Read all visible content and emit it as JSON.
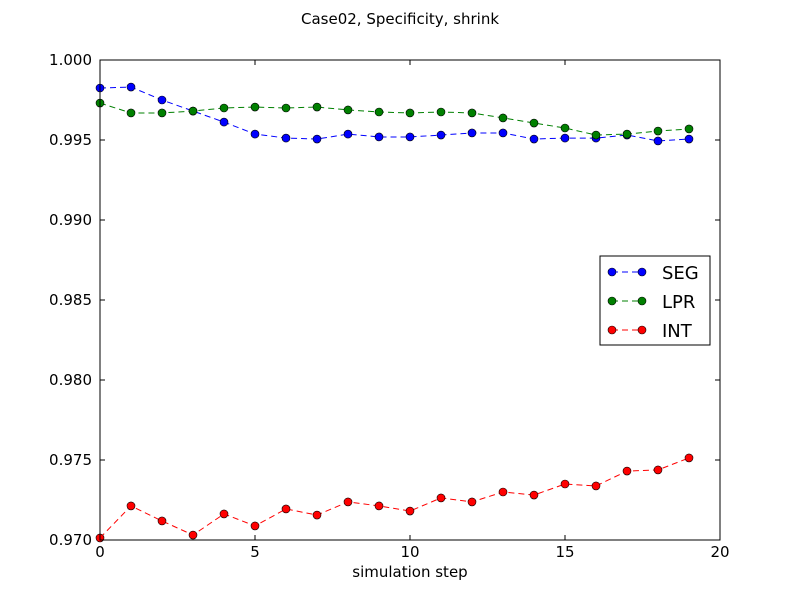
{
  "chart_data": {
    "type": "line",
    "title": "Case02, Specificity, shrink",
    "xlabel": "simulation step",
    "ylabel": "",
    "xlim": [
      0,
      20
    ],
    "ylim": [
      0.97,
      1.0
    ],
    "xticks": [
      0,
      5,
      10,
      15,
      20
    ],
    "xtick_labels": [
      "0",
      "5",
      "10",
      "15",
      "20"
    ],
    "yticks": [
      0.97,
      0.975,
      0.98,
      0.985,
      0.99,
      0.995,
      1.0
    ],
    "ytick_labels": [
      "0.970",
      "0.975",
      "0.980",
      "0.985",
      "0.990",
      "0.995",
      "1.000"
    ],
    "grid": false,
    "legend_position": "center-right",
    "x": [
      0,
      1,
      2,
      3,
      4,
      5,
      6,
      7,
      8,
      9,
      10,
      11,
      12,
      13,
      14,
      15,
      16,
      17,
      18,
      19
    ],
    "series": [
      {
        "name": "SEG",
        "color": "#0000ff",
        "values": [
          0.99825,
          0.99831,
          0.9975,
          0.99681,
          0.99612,
          0.99537,
          0.99512,
          0.99506,
          0.99537,
          0.99519,
          0.99519,
          0.99531,
          0.99544,
          0.99544,
          0.99506,
          0.99512,
          0.99512,
          0.99531,
          0.99494,
          0.99506
        ]
      },
      {
        "name": "LPR",
        "color": "#008000",
        "values": [
          0.99731,
          0.99669,
          0.99669,
          0.99681,
          0.997,
          0.99706,
          0.997,
          0.99706,
          0.99688,
          0.99675,
          0.99669,
          0.99675,
          0.99669,
          0.99638,
          0.99606,
          0.99575,
          0.99531,
          0.99537,
          0.99556,
          0.99569
        ]
      },
      {
        "name": "INT",
        "color": "#ff0000",
        "values": [
          0.97013,
          0.97213,
          0.97119,
          0.97031,
          0.97163,
          0.97088,
          0.97194,
          0.97156,
          0.97238,
          0.97213,
          0.97181,
          0.97263,
          0.97238,
          0.973,
          0.97281,
          0.9735,
          0.97338,
          0.97431,
          0.97438,
          0.97513
        ]
      }
    ]
  }
}
